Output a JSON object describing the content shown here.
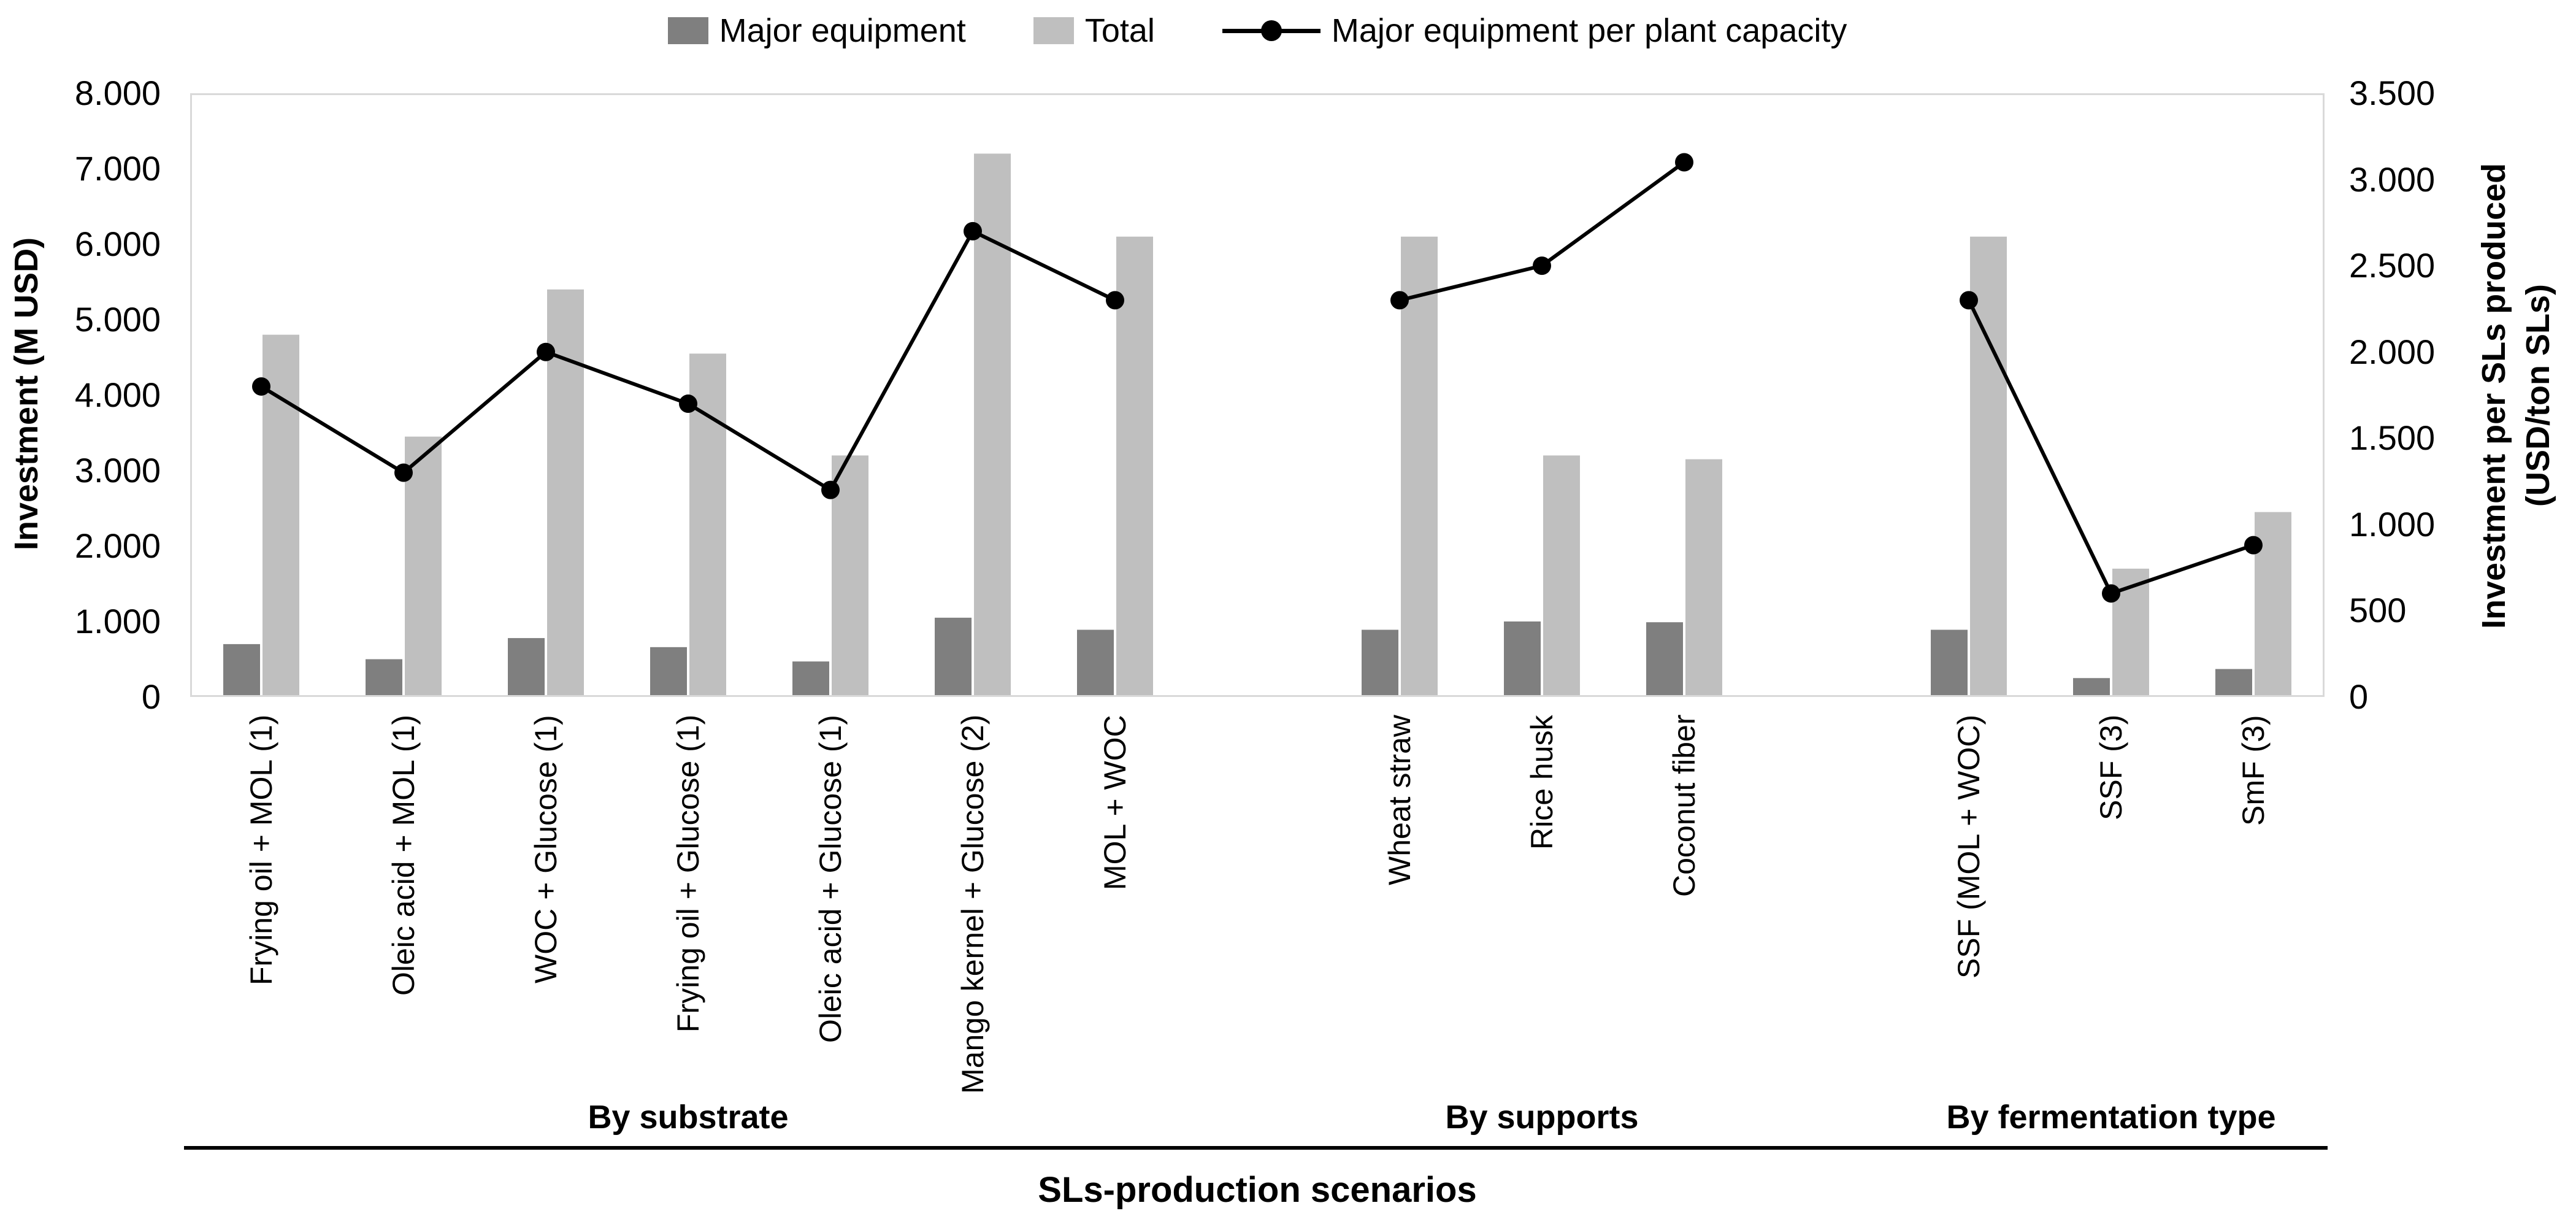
{
  "legend": {
    "major_equipment": "Major equipment",
    "total": "Total",
    "per_capacity": "Major equipment per plant capacity"
  },
  "colors": {
    "major_equipment": "#7f7f7f",
    "total": "#bfbfbf",
    "line": "#000000",
    "plot_border": "#d9d9d9"
  },
  "chart_data": {
    "type": "bar+line combo",
    "title": "",
    "x_axis_title": "SLs-production scenarios",
    "left_axis": {
      "title": "Investment (M USD)",
      "min": 0,
      "max": 8000,
      "ticks": [
        {
          "v": 0,
          "label": "0"
        },
        {
          "v": 1000,
          "label": "1.000"
        },
        {
          "v": 2000,
          "label": "2.000"
        },
        {
          "v": 3000,
          "label": "3.000"
        },
        {
          "v": 4000,
          "label": "4.000"
        },
        {
          "v": 5000,
          "label": "5.000"
        },
        {
          "v": 6000,
          "label": "6.000"
        },
        {
          "v": 7000,
          "label": "7.000"
        },
        {
          "v": 8000,
          "label": "8.000"
        }
      ]
    },
    "right_axis": {
      "title_line1": "Investment per SLs produced",
      "title_line2": "(USD/ton SLs)",
      "min": 0,
      "max": 3500,
      "ticks": [
        {
          "v": 0,
          "label": "0"
        },
        {
          "v": 500,
          "label": "500"
        },
        {
          "v": 1000,
          "label": "1.000"
        },
        {
          "v": 1500,
          "label": "1.500"
        },
        {
          "v": 2000,
          "label": "2.000"
        },
        {
          "v": 2500,
          "label": "2.500"
        },
        {
          "v": 3000,
          "label": "3.000"
        },
        {
          "v": 3500,
          "label": "3.500"
        }
      ]
    },
    "slots_total": 15,
    "groups": [
      {
        "label": "By substrate",
        "categories": [
          {
            "label": "Frying oil + MOL (1)",
            "slot": 0,
            "major_equipment": 700,
            "total": 4800,
            "per_capacity": 1800
          },
          {
            "label": "Oleic acid + MOL (1)",
            "slot": 1,
            "major_equipment": 500,
            "total": 3450,
            "per_capacity": 1300
          },
          {
            "label": "WOC + Glucose (1)",
            "slot": 2,
            "major_equipment": 780,
            "total": 5400,
            "per_capacity": 2000
          },
          {
            "label": "Frying oil + Glucose (1)",
            "slot": 3,
            "major_equipment": 660,
            "total": 4550,
            "per_capacity": 1700
          },
          {
            "label": "Oleic acid + Glucose (1)",
            "slot": 4,
            "major_equipment": 470,
            "total": 3200,
            "per_capacity": 1200
          },
          {
            "label": "Mango kernel + Glucose (2)",
            "slot": 5,
            "major_equipment": 1050,
            "total": 7200,
            "per_capacity": 2700
          },
          {
            "label": "MOL + WOC",
            "slot": 6,
            "major_equipment": 890,
            "total": 6100,
            "per_capacity": 2300
          }
        ]
      },
      {
        "label": "By supports",
        "categories": [
          {
            "label": "Wheat straw",
            "slot": 8,
            "major_equipment": 890,
            "total": 6100,
            "per_capacity": 2300
          },
          {
            "label": "Rice husk",
            "slot": 9,
            "major_equipment": 1000,
            "total": 3200,
            "per_capacity": 2500
          },
          {
            "label": "Coconut fiber",
            "slot": 10,
            "major_equipment": 990,
            "total": 3150,
            "per_capacity": 3100
          }
        ]
      },
      {
        "label": "By fermentation type",
        "categories": [
          {
            "label": "SSF (MOL + WOC)",
            "slot": 12,
            "major_equipment": 890,
            "total": 6100,
            "per_capacity": 2300
          },
          {
            "label": "SSF (3)",
            "slot": 13,
            "major_equipment": 250,
            "total": 1700,
            "per_capacity": 600
          },
          {
            "label": "SmF (3)",
            "slot": 14,
            "major_equipment": 370,
            "total": 2450,
            "per_capacity": 880
          }
        ]
      }
    ]
  }
}
